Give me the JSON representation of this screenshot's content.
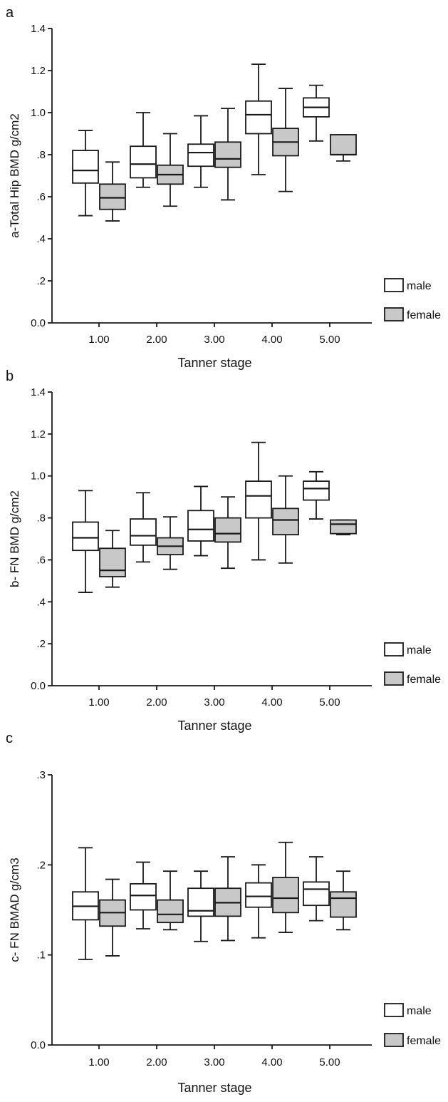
{
  "colors": {
    "male": "#ffffff",
    "female": "#c8c8c8",
    "line": "#1a1a1a"
  },
  "chart_data": [
    {
      "type": "boxplot",
      "panel_label": "a",
      "ylabel": "a-Total Hip BMD g/cm2",
      "xlabel": "Tanner stage",
      "categories": [
        "1.00",
        "2.00",
        "3.00",
        "4.00",
        "5.00"
      ],
      "ylim": [
        0,
        1.4
      ],
      "yticks": [
        0,
        0.2,
        0.4,
        0.6,
        0.8,
        1.0,
        1.2,
        1.4
      ],
      "ytick_labels": [
        "0.0",
        ".2",
        ".4",
        ".6",
        ".8",
        "1.0",
        "1.2",
        "1.4"
      ],
      "legend": [
        "male",
        "female"
      ],
      "legend_position": "bottom-right",
      "series": [
        {
          "name": "male",
          "boxes": [
            {
              "min": 0.51,
              "q1": 0.665,
              "median": 0.725,
              "q3": 0.82,
              "max": 0.915
            },
            {
              "min": 0.645,
              "q1": 0.69,
              "median": 0.755,
              "q3": 0.84,
              "max": 1.0
            },
            {
              "min": 0.645,
              "q1": 0.745,
              "median": 0.81,
              "q3": 0.85,
              "max": 0.985
            },
            {
              "min": 0.705,
              "q1": 0.9,
              "median": 0.99,
              "q3": 1.055,
              "max": 1.23
            },
            {
              "min": 0.865,
              "q1": 0.98,
              "median": 1.025,
              "q3": 1.07,
              "max": 1.13
            }
          ]
        },
        {
          "name": "female",
          "boxes": [
            {
              "min": 0.485,
              "q1": 0.54,
              "median": 0.595,
              "q3": 0.66,
              "max": 0.765
            },
            {
              "min": 0.555,
              "q1": 0.66,
              "median": 0.705,
              "q3": 0.75,
              "max": 0.9
            },
            {
              "min": 0.585,
              "q1": 0.74,
              "median": 0.78,
              "q3": 0.86,
              "max": 1.02
            },
            {
              "min": 0.625,
              "q1": 0.795,
              "median": 0.86,
              "q3": 0.925,
              "max": 1.115
            },
            {
              "min": 0.77,
              "q1": 0.8,
              "median": 0.8,
              "q3": 0.895,
              "max": 0.895
            }
          ]
        }
      ]
    },
    {
      "type": "boxplot",
      "panel_label": "b",
      "ylabel": "b- FN BMD g/cm2",
      "xlabel": "Tanner stage",
      "categories": [
        "1.00",
        "2.00",
        "3.00",
        "4.00",
        "5.00"
      ],
      "ylim": [
        0,
        1.4
      ],
      "yticks": [
        0,
        0.2,
        0.4,
        0.6,
        0.8,
        1.0,
        1.2,
        1.4
      ],
      "ytick_labels": [
        "0.0",
        ".2",
        ".4",
        ".6",
        ".8",
        "1.0",
        "1.2",
        "1.4"
      ],
      "legend": [
        "male",
        "female"
      ],
      "legend_position": "bottom-right",
      "series": [
        {
          "name": "male",
          "boxes": [
            {
              "min": 0.445,
              "q1": 0.645,
              "median": 0.705,
              "q3": 0.78,
              "max": 0.93
            },
            {
              "min": 0.59,
              "q1": 0.67,
              "median": 0.715,
              "q3": 0.795,
              "max": 0.92
            },
            {
              "min": 0.62,
              "q1": 0.69,
              "median": 0.745,
              "q3": 0.835,
              "max": 0.95
            },
            {
              "min": 0.6,
              "q1": 0.8,
              "median": 0.905,
              "q3": 0.975,
              "max": 1.16
            },
            {
              "min": 0.795,
              "q1": 0.885,
              "median": 0.94,
              "q3": 0.975,
              "max": 1.02
            }
          ]
        },
        {
          "name": "female",
          "boxes": [
            {
              "min": 0.47,
              "q1": 0.52,
              "median": 0.55,
              "q3": 0.655,
              "max": 0.74
            },
            {
              "min": 0.555,
              "q1": 0.625,
              "median": 0.665,
              "q3": 0.705,
              "max": 0.805
            },
            {
              "min": 0.56,
              "q1": 0.685,
              "median": 0.725,
              "q3": 0.8,
              "max": 0.9
            },
            {
              "min": 0.585,
              "q1": 0.72,
              "median": 0.79,
              "q3": 0.845,
              "max": 1.0
            },
            {
              "min": 0.72,
              "q1": 0.725,
              "median": 0.77,
              "q3": 0.79,
              "max": 0.79
            }
          ]
        }
      ]
    },
    {
      "type": "boxplot",
      "panel_label": "c",
      "ylabel": "c- FN BMAD g/cm3",
      "xlabel": "Tanner stage",
      "categories": [
        "1.00",
        "2.00",
        "3.00",
        "4.00",
        "5.00"
      ],
      "ylim": [
        0,
        0.3
      ],
      "yticks": [
        0,
        0.1,
        0.2,
        0.3
      ],
      "ytick_labels": [
        "0.0",
        ".1",
        ".2",
        ".3"
      ],
      "legend": [
        "male",
        "female"
      ],
      "legend_position": "bottom-right",
      "series": [
        {
          "name": "male",
          "boxes": [
            {
              "min": 0.095,
              "q1": 0.139,
              "median": 0.154,
              "q3": 0.17,
              "max": 0.219
            },
            {
              "min": 0.129,
              "q1": 0.15,
              "median": 0.166,
              "q3": 0.179,
              "max": 0.203
            },
            {
              "min": 0.115,
              "q1": 0.143,
              "median": 0.149,
              "q3": 0.174,
              "max": 0.193
            },
            {
              "min": 0.119,
              "q1": 0.153,
              "median": 0.165,
              "q3": 0.18,
              "max": 0.2
            },
            {
              "min": 0.138,
              "q1": 0.155,
              "median": 0.173,
              "q3": 0.181,
              "max": 0.209
            }
          ]
        },
        {
          "name": "female",
          "boxes": [
            {
              "min": 0.099,
              "q1": 0.132,
              "median": 0.147,
              "q3": 0.161,
              "max": 0.184
            },
            {
              "min": 0.128,
              "q1": 0.136,
              "median": 0.145,
              "q3": 0.161,
              "max": 0.193
            },
            {
              "min": 0.116,
              "q1": 0.143,
              "median": 0.158,
              "q3": 0.174,
              "max": 0.209
            },
            {
              "min": 0.125,
              "q1": 0.147,
              "median": 0.163,
              "q3": 0.186,
              "max": 0.225
            },
            {
              "min": 0.128,
              "q1": 0.142,
              "median": 0.163,
              "q3": 0.17,
              "max": 0.193
            }
          ]
        }
      ]
    }
  ]
}
